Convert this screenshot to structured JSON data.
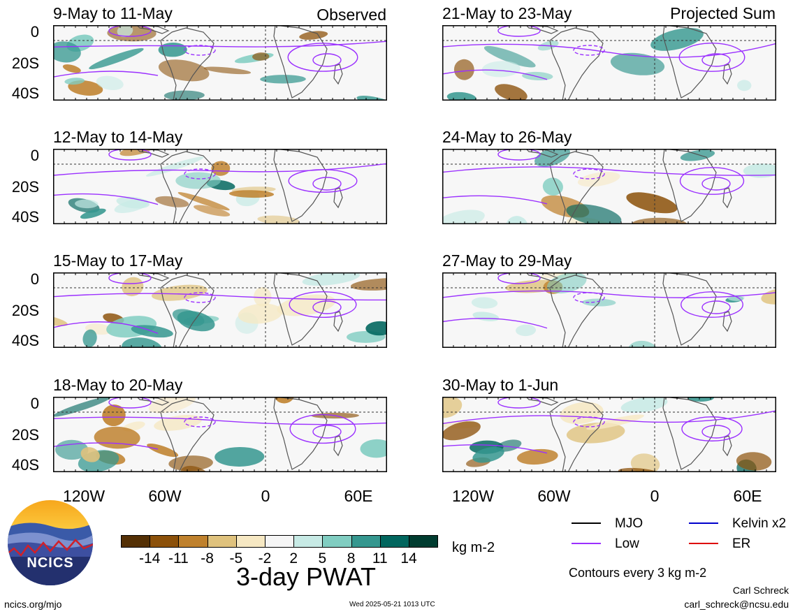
{
  "figure": {
    "title": "3-day PWAT",
    "units": "kg m-2",
    "contour_note": "Contours every 3 kg m-2",
    "author": "Carl Schreck",
    "email": "carl_schreck@ncsu.edu",
    "site": "ncics.org/mjo",
    "timestamp": "Wed 2025-05-21 1013 UTC",
    "logo_text": "NCICS"
  },
  "columns": [
    {
      "tag": "Observed"
    },
    {
      "tag": "Projected Sum"
    }
  ],
  "panels": [
    {
      "title": "9-May to 11-May",
      "column": 0,
      "row": 0
    },
    {
      "title": "12-May to 14-May",
      "column": 0,
      "row": 1
    },
    {
      "title": "15-May to 17-May",
      "column": 0,
      "row": 2
    },
    {
      "title": "18-May to 20-May",
      "column": 0,
      "row": 3
    },
    {
      "title": "21-May to 23-May",
      "column": 1,
      "row": 0
    },
    {
      "title": "24-May to 26-May",
      "column": 1,
      "row": 1
    },
    {
      "title": "27-May to 29-May",
      "column": 1,
      "row": 2
    },
    {
      "title": "30-May to 1-Jun",
      "column": 1,
      "row": 3
    }
  ],
  "axes": {
    "y_ticks": [
      "0",
      "20S",
      "40S"
    ],
    "x_ticks": [
      "120W",
      "60W",
      "0",
      "60E"
    ]
  },
  "colorbar": {
    "labels": [
      "-14",
      "-11",
      "-8",
      "-5",
      "-2",
      "2",
      "5",
      "8",
      "11",
      "14"
    ],
    "colors": [
      "#543005",
      "#8c510a",
      "#bf812d",
      "#dfc27d",
      "#f6e8c3",
      "#f5f5f5",
      "#c7eae5",
      "#80cdc1",
      "#35978f",
      "#01665e",
      "#003c30"
    ]
  },
  "legend": [
    {
      "label": "MJO",
      "color": "#000000"
    },
    {
      "label": "Kelvin x2",
      "color": "#0000cc"
    },
    {
      "label": "Low",
      "color": "#9b30ff"
    },
    {
      "label": "ER",
      "color": "#dd0000"
    }
  ],
  "colors": {
    "low_contour": "#9b30ff",
    "coast": "#555555",
    "reference_line": "#333333",
    "panel_bg": "#f7f7f7"
  },
  "chart_data": {
    "type": "heatmap",
    "variable": "3-day PWAT anomaly",
    "units": "kg m-2",
    "ylim": [
      "40S",
      "10N"
    ],
    "xlim": [
      "150W",
      "80E"
    ],
    "levels": [
      -14,
      -11,
      -8,
      -5,
      -2,
      2,
      5,
      8,
      11,
      14
    ]
  }
}
